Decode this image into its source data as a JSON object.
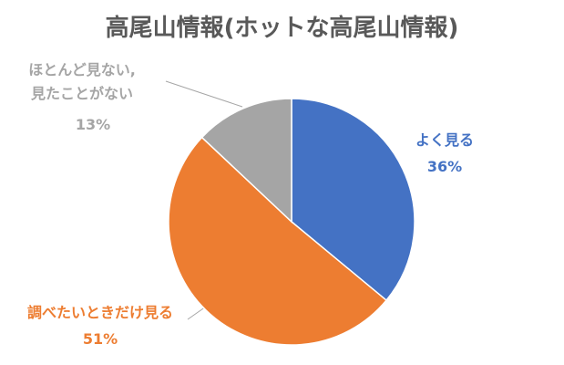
{
  "chart_data": {
    "type": "pie",
    "title": "高尾山情報(ホットな高尾山情報)",
    "categories": [
      "よく見る",
      "調べたいときだけ見る",
      "ほとんど見ない,見たことがない"
    ],
    "values": [
      36,
      51,
      13
    ],
    "value_labels": [
      "36%",
      "51%",
      "13%"
    ],
    "colors": [
      "#4472c4",
      "#ed7d31",
      "#a5a5a5"
    ]
  }
}
